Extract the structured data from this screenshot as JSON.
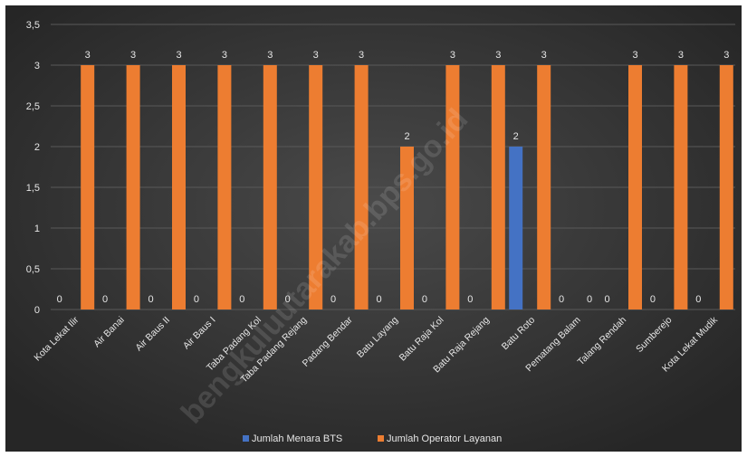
{
  "chart_data": {
    "type": "bar",
    "title": "",
    "xlabel": "",
    "ylabel": "",
    "ylim": [
      0,
      3.5
    ],
    "yticks": [
      0,
      0.5,
      1,
      1.5,
      2,
      2.5,
      3,
      3.5
    ],
    "ytick_labels": [
      "0",
      "0,5",
      "1",
      "1,5",
      "2",
      "2,5",
      "3",
      "3,5"
    ],
    "grid": true,
    "legend_position": "bottom",
    "categories": [
      "Kota Lekat Ilir",
      "Air Banai",
      "Air Baus II",
      "Air Baus I",
      "Taba Padang Kol",
      "Taba Padang Rejang",
      "Padang Bendar",
      "Batu Layang",
      "Batu Raja Kol",
      "Batu Raja Rejang",
      "Batu Roto",
      "Pematang Balam",
      "Talang Rendah",
      "Sumberejo",
      "Kota Lekat Mudik"
    ],
    "series": [
      {
        "name": "Jumlah Menara BTS",
        "color": "#4472c4",
        "values": [
          0,
          0,
          0,
          0,
          0,
          0,
          0,
          0,
          0,
          0,
          2,
          0,
          0,
          0,
          0
        ]
      },
      {
        "name": "Jumlah Operator Layanan",
        "color": "#ed7d31",
        "values": [
          3,
          3,
          3,
          3,
          3,
          3,
          3,
          2,
          3,
          3,
          3,
          0,
          3,
          3,
          3
        ]
      }
    ],
    "watermark": "bengkuluutarakab.bps.go.id"
  },
  "colors": {
    "background": "#3a3a3a",
    "gridline": "#595959",
    "text": "#e6e6e6"
  }
}
